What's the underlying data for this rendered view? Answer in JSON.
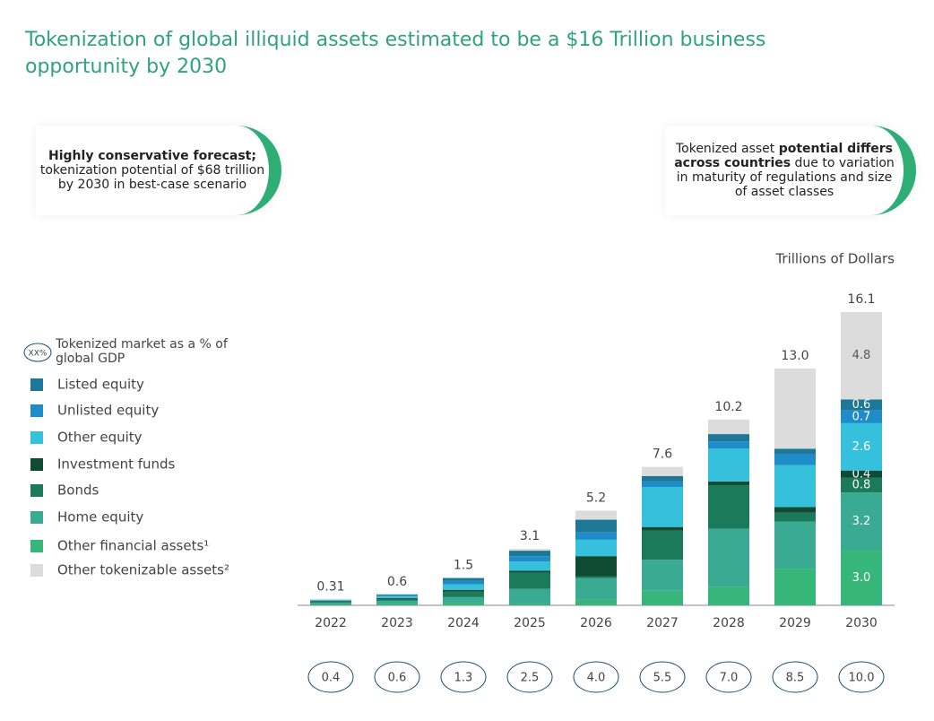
{
  "chart_data": {
    "type": "stacked_bar",
    "title": "Tokenization of global illiquid assets estimated to be a $16 Trillion business opportunity by 2030",
    "unit_label": "Trillions of Dollars",
    "callouts": [
      {
        "parts": [
          "Highly conservative forecast;",
          "tokenization potential of $68 trillion by 2030 in best-case scenario"
        ]
      },
      {
        "parts": [
          "Tokenized asset ",
          "potential differs across countries",
          " due to variation in maturity of regulations and size of asset classes"
        ]
      }
    ],
    "gdp_legend": {
      "symbol": "XX%",
      "label": "Tokenized market as a % of global GDP"
    },
    "categories": [
      "2022",
      "2023",
      "2024",
      "2025",
      "2026",
      "2027",
      "2028",
      "2029",
      "2030"
    ],
    "series": [
      {
        "name": "Listed equity",
        "color": "#1c7896",
        "values": [
          0.01,
          0.05,
          0.15,
          0.3,
          0.7,
          0.3,
          0.4,
          0.3,
          0.6
        ],
        "value_labels": [
          null,
          null,
          null,
          null,
          null,
          null,
          null,
          null,
          "0.6"
        ]
      },
      {
        "name": "Unlisted equity",
        "color": "#1e8cc8",
        "values": [
          0.02,
          0.05,
          0.2,
          0.3,
          0.4,
          0.3,
          0.4,
          0.6,
          0.7
        ],
        "value_labels": [
          null,
          null,
          null,
          null,
          null,
          null,
          null,
          null,
          "0.7"
        ]
      },
      {
        "name": "Other equity",
        "color": "#35c1dc",
        "values": [
          0.03,
          0.1,
          0.3,
          0.5,
          0.9,
          2.2,
          1.8,
          2.3,
          2.6
        ],
        "value_labels": [
          null,
          null,
          null,
          null,
          null,
          null,
          null,
          null,
          "2.6"
        ]
      },
      {
        "name": "Investment funds",
        "color": "#0f4a33",
        "values": [
          0.02,
          0.05,
          0.1,
          0.1,
          1.1,
          0.2,
          0.2,
          0.3,
          0.4
        ],
        "value_labels": [
          null,
          null,
          null,
          null,
          null,
          null,
          null,
          null,
          "0.4"
        ]
      },
      {
        "name": "Bonds",
        "color": "#1a7a5a",
        "values": [
          0.08,
          0.1,
          0.3,
          0.9,
          0.1,
          1.6,
          2.4,
          0.5,
          0.8
        ],
        "value_labels": [
          null,
          null,
          null,
          null,
          null,
          null,
          null,
          null,
          "0.8"
        ]
      },
      {
        "name": "Home equity",
        "color": "#3aab92",
        "values": [
          0.1,
          0.15,
          0.3,
          0.8,
          1.2,
          1.7,
          3.2,
          2.6,
          3.2
        ],
        "value_labels": [
          null,
          null,
          null,
          null,
          null,
          null,
          null,
          null,
          "3.2"
        ]
      },
      {
        "name": "Other financial assets¹",
        "color": "#36b779",
        "values": [
          0.05,
          0.1,
          0.15,
          0.1,
          0.3,
          0.8,
          1.0,
          2.0,
          3.0
        ],
        "value_labels": [
          null,
          null,
          null,
          null,
          null,
          null,
          null,
          null,
          "3.0"
        ]
      },
      {
        "name": "Other tokenizable assets²",
        "color": "#dcdcdc",
        "values": [
          0,
          0,
          0,
          0.1,
          0.5,
          0.5,
          0.8,
          4.4,
          4.8
        ],
        "value_labels": [
          null,
          null,
          null,
          null,
          null,
          null,
          null,
          null,
          "4.8"
        ]
      }
    ],
    "totals": {
      "values": [
        0.31,
        0.6,
        1.5,
        3.1,
        5.2,
        7.6,
        10.2,
        13.0,
        16.1
      ],
      "value_labels": [
        "0.31",
        "0.6",
        "1.5",
        "3.1",
        "5.2",
        "7.6",
        "10.2",
        "13.0",
        "16.1"
      ]
    },
    "gdp_pct": {
      "values": [
        0.4,
        0.6,
        1.3,
        2.5,
        4.0,
        5.5,
        7.0,
        8.5,
        10.0
      ],
      "value_labels": [
        "0.4",
        "0.6",
        "1.3",
        "2.5",
        "4.0",
        "5.5",
        "7.0",
        "8.5",
        "10.0"
      ]
    }
  }
}
